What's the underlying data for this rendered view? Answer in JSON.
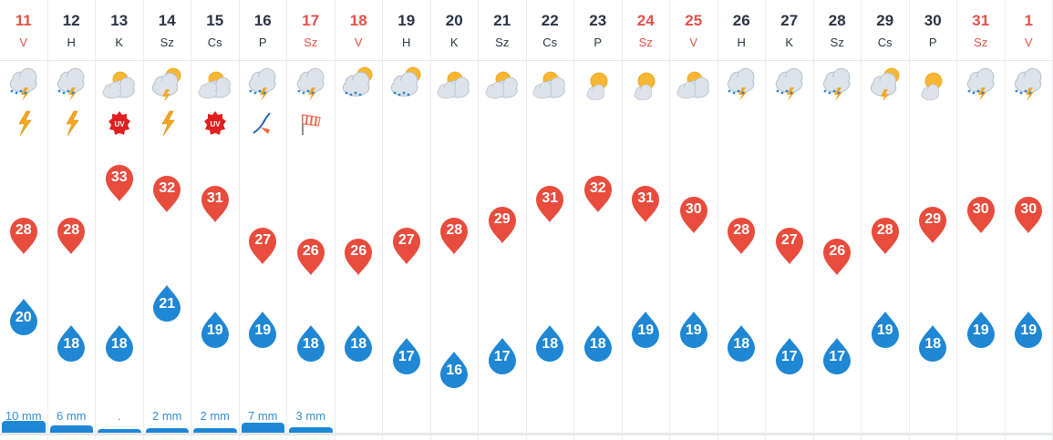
{
  "forecast": {
    "days": [
      {
        "date": "11",
        "dow": "V",
        "weekend": true,
        "icon": "thunderstorm-rain-icon",
        "extra": "lightning-icon",
        "max": "28",
        "min": "20",
        "rain": "10 mm",
        "rain_level": 0.9
      },
      {
        "date": "12",
        "dow": "H",
        "weekend": false,
        "icon": "thunderstorm-rain-icon",
        "extra": "lightning-icon",
        "max": "28",
        "min": "18",
        "rain": "6 mm",
        "rain_level": 0.6
      },
      {
        "date": "13",
        "dow": "K",
        "weekend": false,
        "icon": "partly-cloudy-icon",
        "extra": "uv-warning-icon",
        "max": "33",
        "min": "18",
        "rain": ".",
        "rain_level": 0.25
      },
      {
        "date": "14",
        "dow": "Sz",
        "weekend": false,
        "icon": "sun-cloud-thunder-icon",
        "extra": "lightning-icon",
        "max": "32",
        "min": "21",
        "rain": "2 mm",
        "rain_level": 0.35
      },
      {
        "date": "15",
        "dow": "Cs",
        "weekend": false,
        "icon": "partly-cloudy-icon",
        "extra": "uv-warning-icon",
        "max": "31",
        "min": "19",
        "rain": "2 mm",
        "rain_level": 0.35
      },
      {
        "date": "16",
        "dow": "P",
        "weekend": false,
        "icon": "thunderstorm-rain-icon",
        "extra": "wind-icon",
        "max": "27",
        "min": "19",
        "rain": "7 mm",
        "rain_level": 0.8
      },
      {
        "date": "17",
        "dow": "Sz",
        "weekend": true,
        "icon": "thunderstorm-rain-icon",
        "extra": "windsock-icon",
        "max": "26",
        "min": "18",
        "rain": "3 mm",
        "rain_level": 0.45
      },
      {
        "date": "18",
        "dow": "V",
        "weekend": true,
        "icon": "sun-cloud-rain-icon",
        "extra": "",
        "max": "26",
        "min": "18",
        "rain": "",
        "rain_level": 0
      },
      {
        "date": "19",
        "dow": "H",
        "weekend": false,
        "icon": "sun-cloud-rain-icon",
        "extra": "",
        "max": "27",
        "min": "17",
        "rain": "",
        "rain_level": 0
      },
      {
        "date": "20",
        "dow": "K",
        "weekend": false,
        "icon": "partly-cloudy-icon",
        "extra": "",
        "max": "28",
        "min": "16",
        "rain": "",
        "rain_level": 0
      },
      {
        "date": "21",
        "dow": "Sz",
        "weekend": false,
        "icon": "partly-cloudy-icon",
        "extra": "",
        "max": "29",
        "min": "17",
        "rain": "",
        "rain_level": 0
      },
      {
        "date": "22",
        "dow": "Cs",
        "weekend": false,
        "icon": "partly-cloudy-icon",
        "extra": "",
        "max": "31",
        "min": "18",
        "rain": "",
        "rain_level": 0
      },
      {
        "date": "23",
        "dow": "P",
        "weekend": false,
        "icon": "mostly-sunny-icon",
        "extra": "",
        "max": "32",
        "min": "18",
        "rain": "",
        "rain_level": 0
      },
      {
        "date": "24",
        "dow": "Sz",
        "weekend": true,
        "icon": "mostly-sunny-icon",
        "extra": "",
        "max": "31",
        "min": "19",
        "rain": "",
        "rain_level": 0
      },
      {
        "date": "25",
        "dow": "V",
        "weekend": true,
        "icon": "partly-cloudy-icon",
        "extra": "",
        "max": "30",
        "min": "19",
        "rain": "",
        "rain_level": 0
      },
      {
        "date": "26",
        "dow": "H",
        "weekend": false,
        "icon": "thunderstorm-rain-icon",
        "extra": "",
        "max": "28",
        "min": "18",
        "rain": "",
        "rain_level": 0
      },
      {
        "date": "27",
        "dow": "K",
        "weekend": false,
        "icon": "thunderstorm-rain-icon",
        "extra": "",
        "max": "27",
        "min": "17",
        "rain": "",
        "rain_level": 0
      },
      {
        "date": "28",
        "dow": "Sz",
        "weekend": false,
        "icon": "thunderstorm-rain-icon",
        "extra": "",
        "max": "26",
        "min": "17",
        "rain": "",
        "rain_level": 0
      },
      {
        "date": "29",
        "dow": "Cs",
        "weekend": false,
        "icon": "sun-cloud-thunder-icon",
        "extra": "",
        "max": "28",
        "min": "19",
        "rain": "",
        "rain_level": 0
      },
      {
        "date": "30",
        "dow": "P",
        "weekend": false,
        "icon": "mostly-sunny-icon",
        "extra": "",
        "max": "29",
        "min": "18",
        "rain": "",
        "rain_level": 0
      },
      {
        "date": "31",
        "dow": "Sz",
        "weekend": true,
        "icon": "thunderstorm-rain-icon",
        "extra": "",
        "max": "30",
        "min": "19",
        "rain": "",
        "rain_level": 0
      },
      {
        "date": "1",
        "dow": "V",
        "weekend": true,
        "icon": "thunderstorm-rain-icon",
        "extra": "",
        "max": "30",
        "min": "19",
        "rain": "",
        "rain_level": 0
      }
    ]
  },
  "colors": {
    "max_pin": "#e84c3d",
    "min_drop": "#1f87d4",
    "weekend_text": "#e2524a",
    "rain_bar": "#1e88d6",
    "sun": "#f7b733",
    "cloud": "#dde3ea",
    "lightning": "#f5a623",
    "uv_badge": "#e02020"
  }
}
